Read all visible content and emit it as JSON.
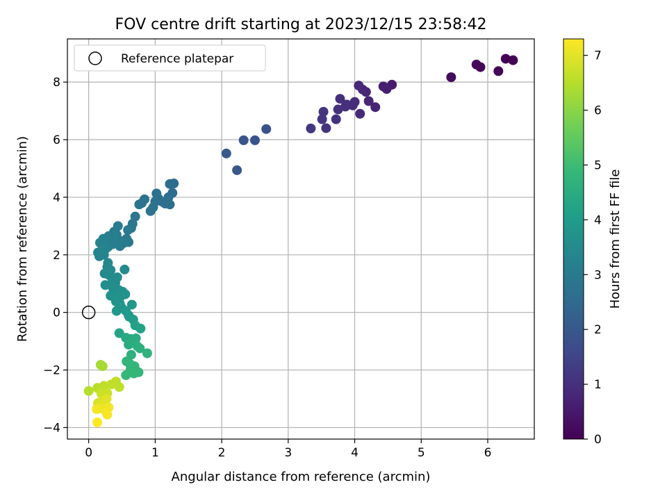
{
  "chart_data": {
    "type": "scatter",
    "title": "FOV centre drift starting at 2023/12/15 23:58:42",
    "xlabel": "Angular distance from reference (arcmin)",
    "ylabel": "Rotation from reference (arcmin)",
    "xlim": [
      -0.32,
      6.7
    ],
    "ylim": [
      -4.4,
      9.5
    ],
    "xticks": [
      0,
      1,
      2,
      3,
      4,
      5,
      6
    ],
    "yticks": [
      -4,
      -2,
      0,
      2,
      4,
      6,
      8
    ],
    "grid": true,
    "legend": {
      "position": "top-left",
      "entries": [
        {
          "label": "Reference platepar",
          "marker": "open-circle"
        }
      ]
    },
    "reference_point": {
      "x": 0,
      "y": 0
    },
    "colorbar": {
      "label": "Hours from first FF file",
      "colormap": "viridis",
      "range": [
        0,
        7.3
      ],
      "ticks": [
        0,
        1,
        2,
        3,
        4,
        5,
        6,
        7
      ]
    },
    "colormap_stops": [
      "#440154",
      "#482878",
      "#3e4a89",
      "#31688e",
      "#26828e",
      "#1f9e89",
      "#35b779",
      "#6ece58",
      "#b5de2b",
      "#fde725"
    ],
    "points": [
      [
        6.38,
        8.76,
        0.0
      ],
      [
        6.27,
        8.81,
        0.03
      ],
      [
        6.16,
        8.38,
        0.08
      ],
      [
        5.89,
        8.52,
        0.12
      ],
      [
        5.83,
        8.61,
        0.15
      ],
      [
        5.45,
        8.17,
        0.22
      ],
      [
        4.56,
        7.91,
        0.55
      ],
      [
        4.48,
        7.76,
        0.6
      ],
      [
        4.43,
        7.85,
        0.62
      ],
      [
        4.31,
        7.13,
        0.7
      ],
      [
        4.21,
        7.34,
        0.75
      ],
      [
        4.17,
        7.66,
        0.78
      ],
      [
        4.12,
        7.74,
        0.8
      ],
      [
        4.06,
        7.88,
        0.85
      ],
      [
        4.08,
        6.9,
        0.88
      ],
      [
        4.0,
        7.31,
        0.9
      ],
      [
        3.97,
        7.19,
        0.93
      ],
      [
        3.88,
        7.22,
        0.95
      ],
      [
        3.86,
        7.15,
        0.97
      ],
      [
        3.78,
        7.42,
        1.0
      ],
      [
        3.75,
        7.05,
        1.02
      ],
      [
        3.72,
        6.71,
        1.05
      ],
      [
        3.57,
        6.4,
        1.1
      ],
      [
        3.53,
        6.97,
        1.12
      ],
      [
        3.51,
        6.71,
        1.15
      ],
      [
        3.34,
        6.39,
        1.2
      ],
      [
        2.67,
        6.37,
        1.8
      ],
      [
        2.5,
        5.98,
        1.9
      ],
      [
        2.33,
        5.98,
        1.95
      ],
      [
        2.23,
        4.94,
        2.0
      ],
      [
        2.07,
        5.52,
        2.05
      ],
      [
        1.28,
        4.48,
        2.55
      ],
      [
        1.22,
        4.46,
        2.58
      ],
      [
        1.26,
        4.15,
        2.6
      ],
      [
        1.2,
        4.0,
        2.62
      ],
      [
        1.22,
        3.75,
        2.64
      ],
      [
        1.15,
        3.78,
        2.66
      ],
      [
        1.1,
        3.85,
        2.68
      ],
      [
        1.05,
        3.95,
        2.7
      ],
      [
        1.0,
        3.85,
        2.72
      ],
      [
        1.02,
        4.13,
        2.72
      ],
      [
        0.97,
        3.65,
        2.74
      ],
      [
        0.93,
        3.52,
        2.76
      ],
      [
        0.84,
        3.93,
        2.78
      ],
      [
        0.8,
        3.8,
        2.8
      ],
      [
        0.76,
        3.75,
        2.82
      ],
      [
        0.7,
        3.33,
        2.86
      ],
      [
        0.66,
        3.08,
        2.9
      ],
      [
        0.64,
        2.93,
        2.92
      ],
      [
        0.59,
        2.86,
        2.95
      ],
      [
        0.6,
        2.44,
        2.98
      ],
      [
        0.57,
        2.56,
        3.0
      ],
      [
        0.52,
        2.4,
        3.02
      ],
      [
        0.47,
        2.3,
        3.04
      ],
      [
        0.45,
        2.45,
        3.06
      ],
      [
        0.44,
        3.0,
        3.05
      ],
      [
        0.42,
        2.7,
        3.08
      ],
      [
        0.38,
        2.8,
        3.1
      ],
      [
        0.36,
        2.55,
        3.12
      ],
      [
        0.33,
        2.4,
        3.14
      ],
      [
        0.3,
        2.65,
        3.16
      ],
      [
        0.27,
        2.5,
        3.18
      ],
      [
        0.25,
        2.2,
        3.2
      ],
      [
        0.22,
        2.56,
        3.22
      ],
      [
        0.2,
        2.35,
        3.24
      ],
      [
        0.17,
        2.42,
        3.26
      ],
      [
        0.14,
        2.08,
        3.28
      ],
      [
        0.16,
        1.95,
        3.3
      ],
      [
        0.23,
        2.0,
        3.32
      ],
      [
        0.29,
        2.27,
        3.34
      ],
      [
        0.48,
        2.48,
        3.02
      ],
      [
        0.36,
        2.37,
        3.13
      ],
      [
        0.29,
        1.72,
        3.4
      ],
      [
        0.28,
        1.58,
        3.42
      ],
      [
        0.33,
        1.47,
        3.44
      ],
      [
        0.24,
        1.35,
        3.46
      ],
      [
        0.31,
        1.29,
        3.48
      ],
      [
        0.36,
        1.14,
        3.5
      ],
      [
        0.43,
        1.22,
        3.52
      ],
      [
        0.4,
        1.02,
        3.54
      ],
      [
        0.33,
        0.95,
        3.56
      ],
      [
        0.25,
        0.95,
        3.58
      ],
      [
        0.37,
        0.82,
        3.6
      ],
      [
        0.45,
        0.78,
        3.62
      ],
      [
        0.51,
        0.72,
        3.64
      ],
      [
        0.42,
        0.63,
        3.66
      ],
      [
        0.33,
        0.58,
        3.68
      ],
      [
        0.54,
        1.49,
        3.5
      ],
      [
        0.48,
        0.55,
        3.7
      ],
      [
        0.55,
        0.63,
        3.72
      ],
      [
        0.41,
        0.38,
        3.75
      ],
      [
        0.47,
        0.3,
        3.78
      ],
      [
        0.5,
        0.15,
        3.82
      ],
      [
        0.42,
        0.05,
        3.86
      ],
      [
        0.56,
        0.05,
        3.9
      ],
      [
        0.65,
        0.27,
        3.85
      ],
      [
        0.61,
        -0.15,
        4.0
      ],
      [
        0.67,
        -0.25,
        4.05
      ],
      [
        0.6,
        -0.1,
        3.95
      ],
      [
        0.7,
        -0.45,
        4.15
      ],
      [
        0.78,
        -0.56,
        4.2
      ],
      [
        0.46,
        -0.72,
        4.25
      ],
      [
        0.56,
        -0.88,
        4.4
      ],
      [
        0.63,
        -0.92,
        4.45
      ],
      [
        0.6,
        -1.12,
        4.5
      ],
      [
        0.67,
        -1.05,
        4.55
      ],
      [
        0.71,
        -0.9,
        4.5
      ],
      [
        0.73,
        -1.17,
        4.6
      ],
      [
        0.77,
        -1.25,
        4.62
      ],
      [
        0.88,
        -1.42,
        4.7
      ],
      [
        0.64,
        -1.47,
        4.65
      ],
      [
        0.57,
        -1.7,
        4.75
      ],
      [
        0.62,
        -1.79,
        4.78
      ],
      [
        0.69,
        -1.87,
        4.8
      ],
      [
        0.75,
        -2.08,
        4.85
      ],
      [
        0.68,
        -2.12,
        4.85
      ],
      [
        0.56,
        -2.18,
        4.88
      ],
      [
        0.63,
        -1.98,
        4.82
      ],
      [
        0.18,
        -1.82,
        6.3
      ],
      [
        0.21,
        -1.87,
        6.32
      ],
      [
        0.0,
        -2.73,
        6.5
      ],
      [
        0.13,
        -2.62,
        6.55
      ],
      [
        0.23,
        -2.55,
        6.6
      ],
      [
        0.34,
        -2.5,
        6.62
      ],
      [
        0.46,
        -2.59,
        6.58
      ],
      [
        0.41,
        -2.4,
        6.6
      ],
      [
        0.19,
        -2.82,
        6.72
      ],
      [
        0.28,
        -2.81,
        6.74
      ],
      [
        0.14,
        -3.15,
        6.86
      ],
      [
        0.2,
        -3.07,
        6.9
      ],
      [
        0.24,
        -3.2,
        6.95
      ],
      [
        0.27,
        -3.0,
        6.98
      ],
      [
        0.16,
        -3.33,
        7.05
      ],
      [
        0.22,
        -3.35,
        7.1
      ],
      [
        0.3,
        -3.3,
        7.15
      ],
      [
        0.12,
        -3.36,
        7.18
      ],
      [
        0.26,
        -3.45,
        7.2
      ],
      [
        0.28,
        -3.55,
        7.22
      ],
      [
        0.13,
        -3.82,
        7.3
      ]
    ]
  }
}
